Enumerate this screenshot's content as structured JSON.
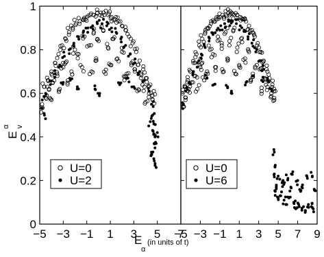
{
  "figure": {
    "ylabel_base": "E",
    "ylabel_sup": "α",
    "ylabel_sub": "v",
    "xlabel_base": "E",
    "xlabel_sub": "α",
    "xlabel_tail": "(in units of t)"
  },
  "chart_data": [
    {
      "type": "scatter",
      "panel": "left",
      "xlabel": "E_α (in units of t)",
      "ylabel": "E_v^α",
      "xlim": [
        -5,
        7
      ],
      "ylim": [
        0,
        1
      ],
      "xticks": [
        "−5",
        "−3",
        "−1",
        "1",
        "3",
        "5",
        "7"
      ],
      "xtick_values": [
        -5,
        -3,
        -1,
        1,
        3,
        5,
        7
      ],
      "yticks": [
        "0",
        "0.2",
        "0.4",
        "0.6",
        "0.8",
        "1"
      ],
      "ytick_values": [
        0,
        0.2,
        0.4,
        0.6,
        0.8,
        1.0
      ],
      "legend_position": "lower-left",
      "series": [
        {
          "name": "U=0",
          "marker": "open-circle",
          "color": "#000000",
          "description_points": [
            [
              -4.9,
              0.6
            ],
            [
              -4.6,
              0.63
            ],
            [
              -4.3,
              0.66
            ],
            [
              -4.0,
              0.7
            ],
            [
              -3.7,
              0.74
            ],
            [
              -3.4,
              0.78
            ],
            [
              -3.1,
              0.82
            ],
            [
              -2.8,
              0.85
            ],
            [
              -2.5,
              0.88
            ],
            [
              -2.2,
              0.9
            ],
            [
              -1.9,
              0.92
            ],
            [
              -1.6,
              0.93
            ],
            [
              -1.3,
              0.94
            ],
            [
              -1.0,
              0.95
            ],
            [
              -0.7,
              0.96
            ],
            [
              -0.4,
              0.96
            ],
            [
              -0.1,
              0.97
            ],
            [
              0.2,
              0.97
            ],
            [
              0.5,
              0.96
            ],
            [
              0.8,
              0.96
            ],
            [
              1.1,
              0.95
            ],
            [
              1.4,
              0.94
            ],
            [
              1.7,
              0.93
            ],
            [
              2.0,
              0.91
            ],
            [
              2.3,
              0.89
            ],
            [
              2.6,
              0.86
            ],
            [
              2.9,
              0.83
            ],
            [
              3.2,
              0.79
            ],
            [
              3.5,
              0.75
            ],
            [
              3.8,
              0.71
            ],
            [
              4.1,
              0.67
            ],
            [
              4.4,
              0.64
            ],
            [
              4.7,
              0.61
            ],
            [
              -4.8,
              0.55
            ],
            [
              -4.2,
              0.62
            ],
            [
              -3.5,
              0.68
            ],
            [
              -2.8,
              0.74
            ],
            [
              -2.0,
              0.8
            ],
            [
              -1.2,
              0.86
            ],
            [
              -0.4,
              0.88
            ],
            [
              0.4,
              0.89
            ],
            [
              1.2,
              0.85
            ],
            [
              2.0,
              0.79
            ],
            [
              2.8,
              0.73
            ],
            [
              3.6,
              0.67
            ],
            [
              4.3,
              0.6
            ],
            [
              -4.5,
              0.58
            ],
            [
              -3.9,
              0.65
            ],
            [
              -3.0,
              0.72
            ],
            [
              -2.3,
              0.7
            ],
            [
              -1.7,
              0.78
            ],
            [
              -0.8,
              0.82
            ],
            [
              0.0,
              0.84
            ],
            [
              0.8,
              0.81
            ],
            [
              1.6,
              0.76
            ],
            [
              2.4,
              0.69
            ],
            [
              3.1,
              0.71
            ],
            [
              3.9,
              0.63
            ],
            [
              4.6,
              0.57
            ],
            [
              -2.6,
              0.66
            ],
            [
              -1.4,
              0.72
            ],
            [
              -0.2,
              0.76
            ],
            [
              1.0,
              0.73
            ],
            [
              2.2,
              0.66
            ],
            [
              -0.6,
              0.7
            ],
            [
              0.6,
              0.69
            ],
            [
              -3.3,
              0.62
            ],
            [
              3.3,
              0.61
            ],
            [
              -4.0,
              0.57
            ],
            [
              4.0,
              0.56
            ],
            [
              -4.9,
              0.51
            ]
          ]
        },
        {
          "name": "U=2",
          "marker": "filled-dot",
          "color": "#000000",
          "description_points": [
            [
              -4.9,
              0.56
            ],
            [
              -4.5,
              0.6
            ],
            [
              -4.1,
              0.64
            ],
            [
              -3.7,
              0.69
            ],
            [
              -3.3,
              0.73
            ],
            [
              -2.9,
              0.77
            ],
            [
              -2.5,
              0.8
            ],
            [
              -2.1,
              0.83
            ],
            [
              -1.7,
              0.86
            ],
            [
              -1.3,
              0.88
            ],
            [
              -0.9,
              0.9
            ],
            [
              -0.5,
              0.91
            ],
            [
              -0.1,
              0.92
            ],
            [
              0.3,
              0.92
            ],
            [
              0.7,
              0.91
            ],
            [
              1.1,
              0.9
            ],
            [
              1.5,
              0.88
            ],
            [
              1.9,
              0.85
            ],
            [
              2.3,
              0.82
            ],
            [
              2.7,
              0.78
            ],
            [
              3.1,
              0.74
            ],
            [
              3.5,
              0.7
            ],
            [
              3.9,
              0.66
            ],
            [
              4.3,
              0.61
            ],
            [
              -2.4,
              0.66
            ],
            [
              -1.8,
              0.63
            ],
            [
              -0.3,
              0.62
            ],
            [
              0.1,
              0.6
            ],
            [
              1.8,
              0.64
            ],
            [
              2.5,
              0.67
            ],
            [
              -3.0,
              0.65
            ],
            [
              3.0,
              0.63
            ],
            [
              -4.8,
              0.53
            ],
            [
              -4.6,
              0.5
            ],
            [
              4.5,
              0.55
            ],
            [
              4.6,
              0.5
            ],
            [
              4.7,
              0.46
            ],
            [
              4.8,
              0.4
            ],
            [
              4.9,
              0.37
            ],
            [
              4.5,
              0.33
            ],
            [
              4.7,
              0.3
            ],
            [
              4.9,
              0.26
            ],
            [
              4.6,
              0.43
            ],
            [
              4.4,
              0.47
            ],
            [
              5.0,
              0.42
            ],
            [
              4.8,
              0.35
            ]
          ]
        }
      ]
    },
    {
      "type": "scatter",
      "panel": "right",
      "xlabel": "E_α (in units of t)",
      "ylabel": "E_v^α",
      "xlim": [
        -5,
        9
      ],
      "ylim": [
        0,
        1
      ],
      "xticks": [
        "−5",
        "−3",
        "−1",
        "1",
        "3",
        "5",
        "7",
        "9"
      ],
      "xtick_values": [
        -5,
        -3,
        -1,
        1,
        3,
        5,
        7,
        9
      ],
      "legend_position": "lower-left",
      "series": [
        {
          "name": "U=0",
          "marker": "open-circle",
          "color": "#000000",
          "description_points": [
            [
              -4.9,
              0.6
            ],
            [
              -4.6,
              0.63
            ],
            [
              -4.3,
              0.66
            ],
            [
              -4.0,
              0.7
            ],
            [
              -3.7,
              0.74
            ],
            [
              -3.4,
              0.78
            ],
            [
              -3.1,
              0.82
            ],
            [
              -2.8,
              0.85
            ],
            [
              -2.5,
              0.88
            ],
            [
              -2.2,
              0.9
            ],
            [
              -1.9,
              0.92
            ],
            [
              -1.6,
              0.93
            ],
            [
              -1.3,
              0.94
            ],
            [
              -1.0,
              0.95
            ],
            [
              -0.7,
              0.96
            ],
            [
              -0.4,
              0.96
            ],
            [
              -0.1,
              0.97
            ],
            [
              0.2,
              0.97
            ],
            [
              0.5,
              0.96
            ],
            [
              0.8,
              0.96
            ],
            [
              1.1,
              0.95
            ],
            [
              1.4,
              0.94
            ],
            [
              1.7,
              0.93
            ],
            [
              2.0,
              0.91
            ],
            [
              2.3,
              0.89
            ],
            [
              2.6,
              0.86
            ],
            [
              2.9,
              0.83
            ],
            [
              3.2,
              0.79
            ],
            [
              3.5,
              0.75
            ],
            [
              3.8,
              0.71
            ],
            [
              4.1,
              0.67
            ],
            [
              4.4,
              0.64
            ],
            [
              4.7,
              0.61
            ],
            [
              -4.8,
              0.55
            ],
            [
              -4.2,
              0.62
            ],
            [
              -3.5,
              0.68
            ],
            [
              -2.8,
              0.74
            ],
            [
              -2.0,
              0.8
            ],
            [
              -1.2,
              0.86
            ],
            [
              -0.4,
              0.88
            ],
            [
              0.4,
              0.89
            ],
            [
              1.2,
              0.85
            ],
            [
              2.0,
              0.79
            ],
            [
              2.8,
              0.73
            ],
            [
              3.6,
              0.67
            ],
            [
              4.3,
              0.6
            ],
            [
              -4.5,
              0.58
            ],
            [
              -3.9,
              0.65
            ],
            [
              -3.0,
              0.72
            ],
            [
              -2.3,
              0.7
            ],
            [
              -1.7,
              0.78
            ],
            [
              -0.8,
              0.82
            ],
            [
              0.0,
              0.84
            ],
            [
              0.8,
              0.81
            ],
            [
              1.6,
              0.76
            ],
            [
              2.4,
              0.69
            ],
            [
              3.1,
              0.71
            ],
            [
              3.9,
              0.63
            ],
            [
              4.6,
              0.57
            ],
            [
              -2.6,
              0.66
            ],
            [
              -1.4,
              0.72
            ],
            [
              -0.2,
              0.76
            ],
            [
              1.0,
              0.73
            ],
            [
              2.2,
              0.66
            ],
            [
              -0.6,
              0.7
            ],
            [
              0.6,
              0.69
            ],
            [
              -3.3,
              0.62
            ],
            [
              3.3,
              0.61
            ]
          ]
        },
        {
          "name": "U=6",
          "marker": "filled-dot",
          "color": "#000000",
          "description_points": [
            [
              -4.9,
              0.57
            ],
            [
              -4.5,
              0.61
            ],
            [
              -4.1,
              0.65
            ],
            [
              -3.7,
              0.7
            ],
            [
              -3.3,
              0.74
            ],
            [
              -2.9,
              0.78
            ],
            [
              -2.5,
              0.81
            ],
            [
              -2.1,
              0.84
            ],
            [
              -1.7,
              0.87
            ],
            [
              -1.3,
              0.89
            ],
            [
              -0.9,
              0.91
            ],
            [
              -0.5,
              0.92
            ],
            [
              -0.1,
              0.93
            ],
            [
              0.3,
              0.93
            ],
            [
              0.7,
              0.92
            ],
            [
              1.1,
              0.91
            ],
            [
              1.5,
              0.89
            ],
            [
              1.9,
              0.86
            ],
            [
              2.3,
              0.83
            ],
            [
              2.7,
              0.79
            ],
            [
              3.1,
              0.75
            ],
            [
              3.5,
              0.71
            ],
            [
              3.9,
              0.67
            ],
            [
              4.3,
              0.62
            ],
            [
              -2.3,
              0.67
            ],
            [
              -1.6,
              0.64
            ],
            [
              -0.2,
              0.63
            ],
            [
              0.2,
              0.61
            ],
            [
              1.7,
              0.65
            ],
            [
              2.4,
              0.68
            ],
            [
              3.3,
              0.66
            ],
            [
              -4.8,
              0.53
            ],
            [
              4.6,
              0.33
            ],
            [
              4.7,
              0.27
            ],
            [
              4.6,
              0.23
            ],
            [
              5.0,
              0.22
            ],
            [
              5.5,
              0.2
            ],
            [
              6.0,
              0.21
            ],
            [
              6.5,
              0.24
            ],
            [
              7.0,
              0.2
            ],
            [
              7.5,
              0.18
            ],
            [
              8.0,
              0.21
            ],
            [
              8.5,
              0.22
            ],
            [
              8.9,
              0.2
            ],
            [
              4.8,
              0.17
            ],
            [
              5.2,
              0.13
            ],
            [
              5.6,
              0.11
            ],
            [
              6.1,
              0.12
            ],
            [
              6.6,
              0.1
            ],
            [
              7.1,
              0.09
            ],
            [
              7.6,
              0.08
            ],
            [
              8.1,
              0.09
            ],
            [
              8.6,
              0.07
            ],
            [
              8.9,
              0.06
            ],
            [
              5.0,
              0.12
            ],
            [
              5.8,
              0.09
            ],
            [
              6.8,
              0.07
            ],
            [
              7.8,
              0.06
            ],
            [
              8.4,
              0.08
            ],
            [
              4.7,
              0.15
            ],
            [
              5.4,
              0.19
            ],
            [
              6.3,
              0.17
            ],
            [
              7.3,
              0.15
            ],
            [
              8.7,
              0.16
            ]
          ]
        }
      ]
    }
  ]
}
